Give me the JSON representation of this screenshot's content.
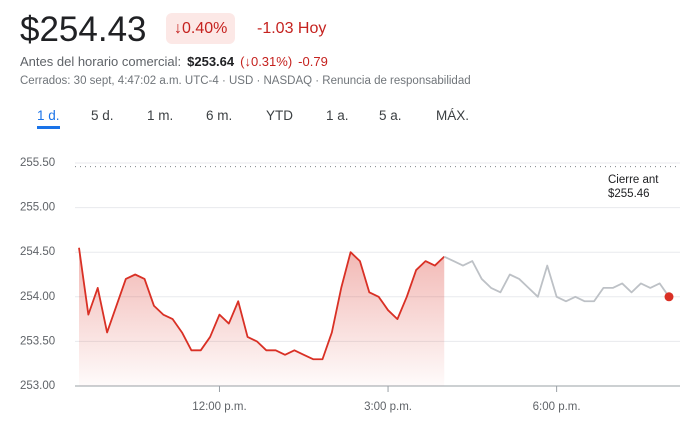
{
  "price": "$254.43",
  "change_pct": "↓0.40%",
  "change_today": "-1.03 Hoy",
  "premarket": {
    "label": "Antes del horario comercial:",
    "price": "$253.64",
    "pct": "(↓0.31%)",
    "change": "-0.79"
  },
  "status": "Cerrados: 30 sept, 4:47:02 a.m. UTC-4 · USD · NASDAQ · Renuncia de responsabilidad",
  "tabs": [
    "1 d.",
    "5 d.",
    "1 m.",
    "6 m.",
    "YTD",
    "1 a.",
    "5 a.",
    "MÁX."
  ],
  "selected_tab": 0,
  "chart_data": {
    "type": "line",
    "x": [
      570,
      580,
      590,
      600,
      610,
      620,
      630,
      640,
      650,
      660,
      670,
      680,
      690,
      700,
      710,
      720,
      730,
      740,
      750,
      760,
      770,
      780,
      790,
      800,
      810,
      820,
      830,
      840,
      850,
      860,
      870,
      880,
      890,
      900,
      910,
      920,
      930,
      940,
      950,
      960,
      970,
      980,
      990,
      1000,
      1010,
      1020,
      1030,
      1040,
      1050,
      1060,
      1070,
      1080,
      1090,
      1100,
      1110,
      1120,
      1130,
      1140,
      1150,
      1160,
      1170,
      1180,
      1190,
      1200
    ],
    "series": [
      {
        "color": "#d93025",
        "area": true,
        "values": [
          254.55,
          253.8,
          254.1,
          253.6,
          253.9,
          254.2,
          254.25,
          254.2,
          253.9,
          253.8,
          253.75,
          253.6,
          253.4,
          253.4,
          253.55,
          253.8,
          253.7,
          253.95,
          253.55,
          253.5,
          253.4,
          253.4,
          253.35,
          253.4,
          253.35,
          253.3,
          253.3,
          253.6,
          254.1,
          254.5,
          254.4,
          254.05,
          254.0,
          253.85,
          253.75,
          254.0,
          254.3,
          254.4,
          254.35,
          254.45,
          null,
          null,
          null,
          null,
          null,
          null,
          null,
          null,
          null,
          null,
          null,
          null,
          null,
          null,
          null,
          null,
          null,
          null,
          null,
          null,
          null,
          null,
          null,
          null
        ]
      },
      {
        "color": "#bdc1c6",
        "area": false,
        "end_dot": "#d93025",
        "values": [
          null,
          null,
          null,
          null,
          null,
          null,
          null,
          null,
          null,
          null,
          null,
          null,
          null,
          null,
          null,
          null,
          null,
          null,
          null,
          null,
          null,
          null,
          null,
          null,
          null,
          null,
          null,
          null,
          null,
          null,
          null,
          null,
          null,
          null,
          null,
          null,
          null,
          null,
          null,
          254.45,
          254.4,
          254.35,
          254.4,
          254.2,
          254.1,
          254.05,
          254.25,
          254.2,
          254.1,
          254.0,
          254.35,
          254.0,
          253.95,
          254.0,
          253.95,
          253.95,
          254.1,
          254.1,
          254.15,
          254.05,
          254.15,
          254.1,
          254.15,
          254.0
        ]
      }
    ],
    "xlim": [
      570,
      1200
    ],
    "xticks": [
      {
        "value": 720,
        "label": "12:00 p.m."
      },
      {
        "value": 900,
        "label": "3:00 p.m."
      },
      {
        "value": 1080,
        "label": "6:00 p.m."
      }
    ],
    "ylim": [
      253,
      255.5
    ],
    "yticks": [
      {
        "value": 253,
        "label": "253.00"
      },
      {
        "value": 253.5,
        "label": "253.50"
      },
      {
        "value": 254,
        "label": "254.00"
      },
      {
        "value": 254.5,
        "label": "254.50"
      },
      {
        "value": 255,
        "label": "255.00"
      },
      {
        "value": 255.5,
        "label": "255.50"
      }
    ],
    "grid": true,
    "previous_close": {
      "value": 255.46,
      "label": "$255.46"
    },
    "previous_close_title": "Cierre ant"
  }
}
